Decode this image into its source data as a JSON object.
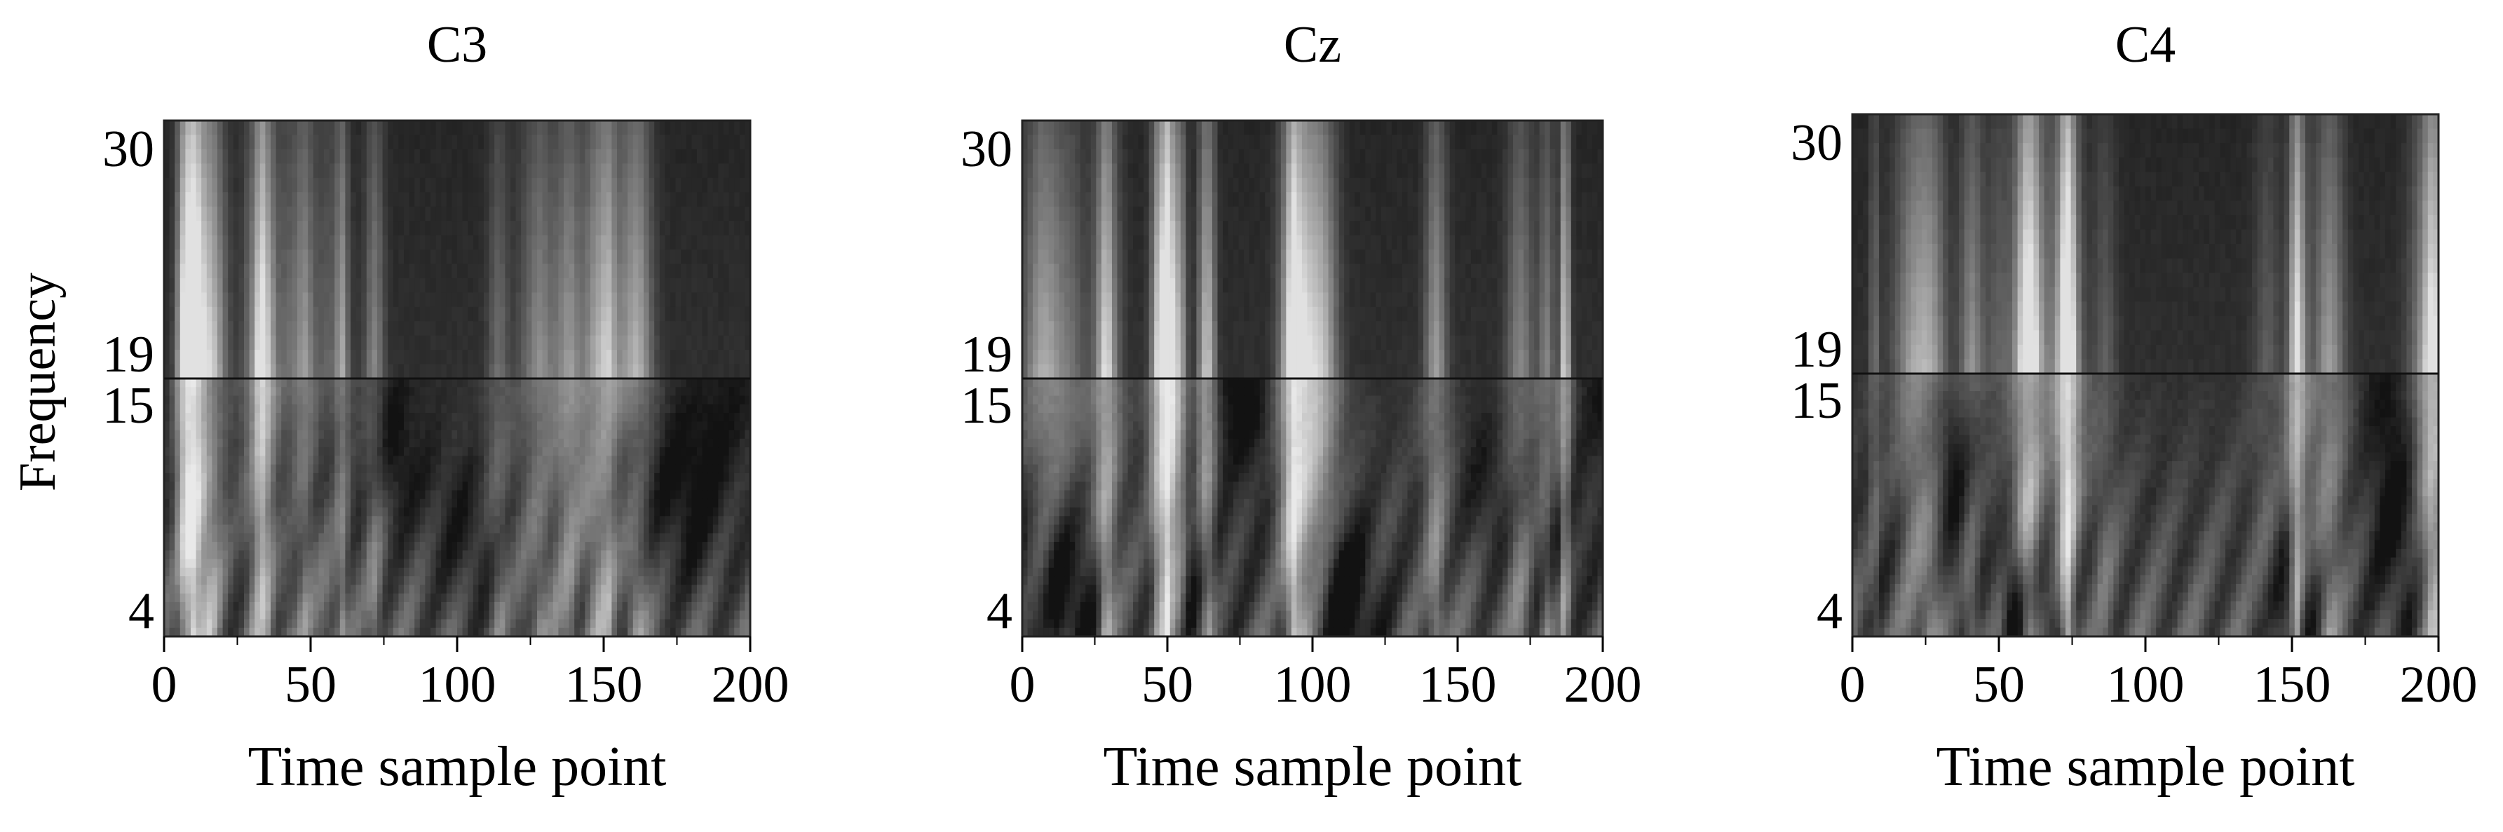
{
  "figure": {
    "ylabel": "Frequency"
  },
  "chart_data": [
    {
      "type": "heatmap",
      "title": "C3",
      "xlabel": "Time sample point",
      "ylabel": "Frequency",
      "x_ticks": [
        0,
        50,
        100,
        150,
        200
      ],
      "y_ticks": [
        4,
        15,
        19,
        30
      ],
      "xlim": [
        0,
        200
      ],
      "bands": [
        {
          "name": "",
          "range": [
            19,
            30
          ],
          "colorscale": "grayscale"
        },
        {
          "name": "",
          "range": [
            4,
            15
          ],
          "colorscale": "grayscale"
        }
      ],
      "seed": 11
    },
    {
      "type": "heatmap",
      "title": "Cz",
      "xlabel": "Time sample point",
      "ylabel": "",
      "x_ticks": [
        0,
        50,
        100,
        150,
        200
      ],
      "y_ticks": [
        4,
        15,
        19,
        30
      ],
      "xlim": [
        0,
        200
      ],
      "bands": [
        {
          "name": "",
          "range": [
            19,
            30
          ],
          "colorscale": "grayscale"
        },
        {
          "name": "",
          "range": [
            4,
            15
          ],
          "colorscale": "grayscale"
        }
      ],
      "seed": 23
    },
    {
      "type": "heatmap",
      "title": "C4",
      "xlabel": "Time sample point",
      "ylabel": "",
      "x_ticks": [
        0,
        50,
        100,
        150,
        200
      ],
      "y_ticks": [
        4,
        15,
        19,
        30
      ],
      "xlim": [
        0,
        200
      ],
      "bands": [
        {
          "name": "",
          "range": [
            19,
            30
          ],
          "colorscale": "grayscale"
        },
        {
          "name": "",
          "range": [
            4,
            15
          ],
          "colorscale": "grayscale"
        }
      ],
      "seed": 37
    }
  ]
}
